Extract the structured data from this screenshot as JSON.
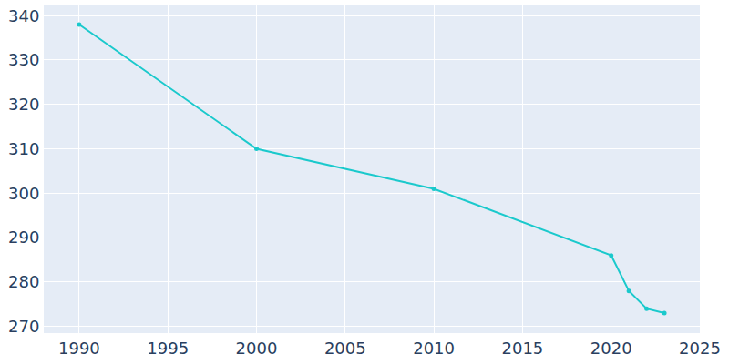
{
  "chart_data": {
    "type": "line",
    "x": [
      1990,
      2000,
      2010,
      2020,
      2021,
      2022,
      2023
    ],
    "values": [
      338,
      310,
      301,
      286,
      278,
      274,
      273
    ],
    "color": "#1ac9cc",
    "marker": "circle",
    "xlim": [
      1988,
      2025
    ],
    "xticks": [
      1990,
      1995,
      2000,
      2005,
      2010,
      2015,
      2020,
      2025
    ],
    "ylim": [
      268.5,
      342.5
    ],
    "yticks": [
      270,
      280,
      290,
      300,
      310,
      320,
      330,
      340
    ],
    "grid": true
  }
}
